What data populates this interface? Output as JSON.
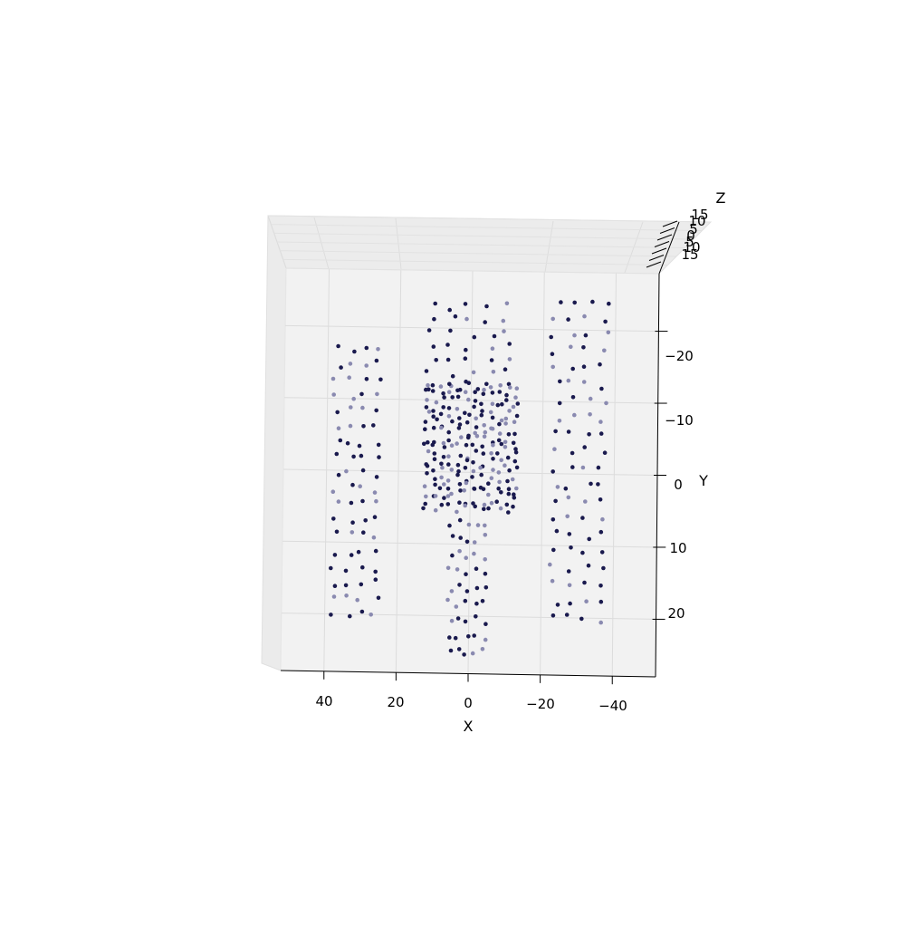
{
  "chart_data": {
    "type": "scatter",
    "projection": "3d",
    "title": "",
    "xlabel": "X",
    "ylabel": "Y",
    "zlabel": "Z",
    "x_ticks": [
      "40",
      "20",
      "0",
      "−20",
      "−40"
    ],
    "y_ticks": [
      "−20",
      "−10",
      "0",
      "10",
      "20"
    ],
    "z_ticks": [
      "15",
      "10",
      "5",
      "0",
      "5",
      "10",
      "15"
    ],
    "xlim": [
      -52,
      52
    ],
    "ylim": [
      -28,
      28
    ],
    "zlim": [
      -15,
      15
    ],
    "grid": true,
    "pane_color": "#f2f2f2",
    "point_color": "#1a1a4e",
    "point_color_light": "#8a8ab0",
    "clusters": [
      {
        "name_hidden": true,
        "x_range": [
          25,
          40
        ],
        "y_range": [
          -17,
          20
        ],
        "rows": 18,
        "per_row": 4
      },
      {
        "name_hidden": true,
        "x_range": [
          13,
          -14
        ],
        "y_range": [
          -23,
          -12
        ],
        "rows": 7,
        "per_row": 5
      },
      {
        "name_hidden": true,
        "x_range": [
          13,
          -14
        ],
        "y_range": [
          -12,
          5
        ],
        "rows": 17,
        "per_row": 12
      },
      {
        "name_hidden": true,
        "x_range": [
          6,
          -6
        ],
        "y_range": [
          7,
          25
        ],
        "rows": 9,
        "per_row": 5
      },
      {
        "name_hidden": true,
        "x_range": [
          -22,
          -40
        ],
        "y_range": [
          -24,
          20
        ],
        "rows": 20,
        "per_row": 4
      }
    ]
  }
}
